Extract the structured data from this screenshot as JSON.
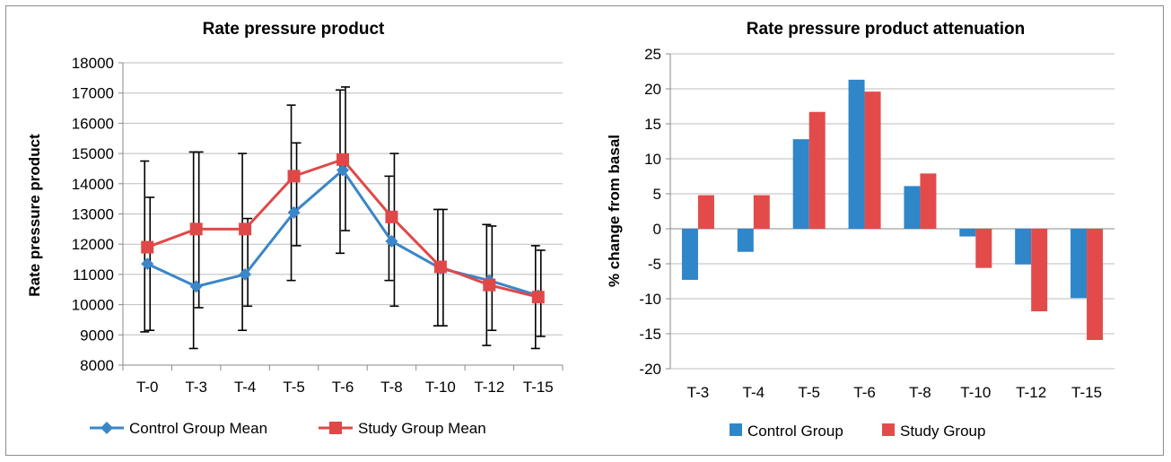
{
  "chart_data": [
    {
      "type": "line",
      "title": "Rate pressure product",
      "xlabel": "",
      "ylabel": "Rate pressure product",
      "ylim": [
        8000,
        18000
      ],
      "yticks": [
        8000,
        9000,
        10000,
        11000,
        12000,
        13000,
        14000,
        15000,
        16000,
        17000,
        18000
      ],
      "categories": [
        "T-0",
        "T-3",
        "T-4",
        "T-5",
        "T-6",
        "T-8",
        "T-10",
        "T-12",
        "T-15"
      ],
      "grid": "horizontal",
      "legend": "bottom",
      "series": [
        {
          "name": "Control Group Mean",
          "color": "#3a86c8",
          "marker": "diamond",
          "values": [
            11350,
            10600,
            11000,
            13050,
            14450,
            12100,
            11200,
            10800,
            10300
          ],
          "error_low": [
            9100,
            8550,
            9150,
            10800,
            11700,
            10800,
            9300,
            8650,
            8550
          ],
          "error_high": [
            14750,
            15050,
            15000,
            16600,
            17100,
            14250,
            13150,
            12650,
            11950
          ]
        },
        {
          "name": "Study Group Mean",
          "color": "#e04848",
          "marker": "square",
          "values": [
            11900,
            12500,
            12500,
            14250,
            14800,
            12900,
            11250,
            10650,
            10250
          ],
          "error_low": [
            9150,
            9900,
            9950,
            11950,
            12450,
            9950,
            9300,
            9150,
            8950
          ],
          "error_high": [
            13550,
            15050,
            12850,
            15350,
            17200,
            15000,
            13150,
            12600,
            11800
          ]
        }
      ]
    },
    {
      "type": "bar",
      "title": "Rate pressure product attenuation",
      "xlabel": "",
      "ylabel": "% change from basal",
      "ylim": [
        -20,
        25
      ],
      "yticks": [
        -20,
        -15,
        -10,
        -5,
        0,
        5,
        10,
        15,
        20,
        25
      ],
      "categories": [
        "T-3",
        "T-4",
        "T-5",
        "T-6",
        "T-8",
        "T-10",
        "T-12",
        "T-15"
      ],
      "grid": "horizontal",
      "legend": "bottom",
      "series": [
        {
          "name": "Control Group",
          "color": "#2f86c9",
          "values": [
            -7.3,
            -3.3,
            12.8,
            21.3,
            6.1,
            -1.1,
            -5.1,
            -9.9
          ]
        },
        {
          "name": "Study Group",
          "color": "#e34b4b",
          "values": [
            4.8,
            4.8,
            16.7,
            19.6,
            7.9,
            -5.6,
            -11.8,
            -15.9
          ]
        }
      ]
    }
  ]
}
